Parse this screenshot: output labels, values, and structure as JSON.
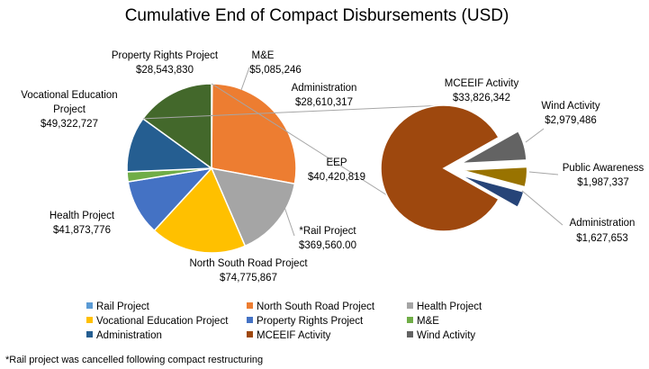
{
  "chart_data": {
    "type": "pie",
    "title": "Cumulative End of Compact Disbursements (USD)",
    "footnote": "*Rail project was cancelled following compact restructuring",
    "main_pie": {
      "slices": [
        {
          "key": "rail",
          "label": "*Rail Project",
          "value_label": "$369,560.00",
          "value": 369560.0,
          "color": "#5B9BD5"
        },
        {
          "key": "nsr",
          "label": "North South Road Project",
          "value_label": "$74,775,867",
          "value": 74775867,
          "color": "#ED7D31"
        },
        {
          "key": "health",
          "label": "Health Project",
          "value_label": "$41,873,776",
          "value": 41873776,
          "color": "#A5A5A5"
        },
        {
          "key": "voc",
          "label": "Vocational Education Project",
          "value_label": "$49,322,727",
          "value": 49322727,
          "color": "#FFC000"
        },
        {
          "key": "prop",
          "label": "Property Rights Project",
          "value_label": "$28,543,830",
          "value": 28543830,
          "color": "#4472C4"
        },
        {
          "key": "me",
          "label": "M&E",
          "value_label": "$5,085,246",
          "value": 5085246,
          "color": "#70AD47"
        },
        {
          "key": "admin",
          "label": "Administration",
          "value_label": "$28,610,317",
          "value": 28610317,
          "color": "#255E91"
        },
        {
          "key": "eep",
          "label": "EEP",
          "value_label": "$40,420,819",
          "value": 40420819,
          "color": "#43682B"
        }
      ]
    },
    "breakout_pie": {
      "from_slice": "eep",
      "slices": [
        {
          "key": "mceeif",
          "label": "MCEEIF Activity",
          "value_label": "$33,826,342",
          "value": 33826342,
          "color": "#9E480E"
        },
        {
          "key": "wind",
          "label": "Wind Activity",
          "value_label": "$2,979,486",
          "value": 2979486,
          "color": "#636363"
        },
        {
          "key": "pa",
          "label": "Public Awareness",
          "value_label": "$1,987,337",
          "value": 1987337,
          "color": "#997300"
        },
        {
          "key": "adm2",
          "label": "Administration",
          "value_label": "$1,627,653",
          "value": 1627653,
          "color": "#264478"
        }
      ]
    },
    "legend": [
      {
        "label": "Rail Project",
        "color": "#5B9BD5"
      },
      {
        "label": "North South Road Project",
        "color": "#ED7D31"
      },
      {
        "label": "Health Project",
        "color": "#A5A5A5"
      },
      {
        "label": "Vocational Education Project",
        "color": "#FFC000"
      },
      {
        "label": "Property Rights Project",
        "color": "#4472C4"
      },
      {
        "label": "M&E",
        "color": "#70AD47"
      },
      {
        "label": "Administration",
        "color": "#255E91"
      },
      {
        "label": "MCEEIF Activity",
        "color": "#9E480E"
      },
      {
        "label": "Wind Activity",
        "color": "#636363"
      }
    ]
  }
}
